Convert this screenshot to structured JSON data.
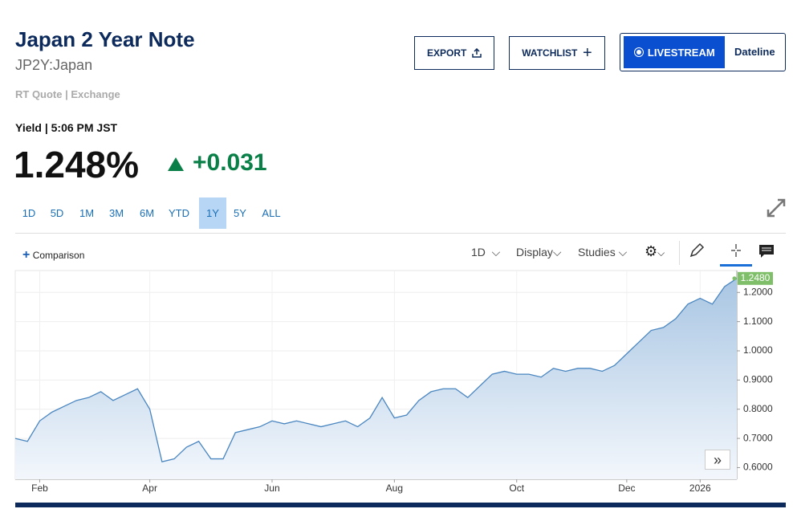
{
  "header": {
    "title": "Japan 2 Year Note",
    "symbol": "JP2Y:Japan",
    "quote_source": "RT Quote | Exchange"
  },
  "buttons": {
    "export": "EXPORT",
    "watchlist": "WATCHLIST",
    "livestream": "LIVESTREAM",
    "dateline": "Dateline"
  },
  "quote": {
    "label": "Yield | 5:06 PM JST",
    "price": "1.248%",
    "change": "+0.031"
  },
  "ranges": [
    "1D",
    "5D",
    "1M",
    "3M",
    "6M",
    "YTD",
    "1Y",
    "5Y",
    "ALL"
  ],
  "active_range_index": 6,
  "toolbar": {
    "comparison": "Comparison",
    "interval": "1D",
    "display": "Display",
    "studies": "Studies"
  },
  "chart_data": {
    "type": "line",
    "categories": [
      null,
      null,
      "Feb",
      null,
      null,
      null,
      null,
      null,
      null,
      null,
      null,
      "Apr",
      null,
      null,
      null,
      null,
      null,
      null,
      null,
      null,
      null,
      "Jun",
      null,
      null,
      null,
      null,
      null,
      null,
      null,
      null,
      null,
      "Aug",
      null,
      null,
      null,
      null,
      null,
      null,
      null,
      null,
      null,
      "Oct",
      null,
      null,
      null,
      null,
      null,
      null,
      null,
      null,
      "Dec",
      null,
      null,
      null,
      null,
      null,
      "2026",
      null,
      null,
      null
    ],
    "series": [
      {
        "name": "JP2Y",
        "color": "#4a86c0",
        "values": [
          0.7,
          0.69,
          0.76,
          0.79,
          0.81,
          0.83,
          0.84,
          0.86,
          0.83,
          0.85,
          0.87,
          0.8,
          0.62,
          0.63,
          0.67,
          0.69,
          0.63,
          0.63,
          0.72,
          0.73,
          0.74,
          0.76,
          0.75,
          0.76,
          0.75,
          0.74,
          0.75,
          0.76,
          0.74,
          0.77,
          0.84,
          0.77,
          0.78,
          0.83,
          0.86,
          0.87,
          0.87,
          0.84,
          0.88,
          0.92,
          0.93,
          0.92,
          0.92,
          0.91,
          0.94,
          0.93,
          0.94,
          0.94,
          0.93,
          0.95,
          0.99,
          1.03,
          1.07,
          1.08,
          1.11,
          1.16,
          1.18,
          1.16,
          1.22,
          1.248
        ]
      }
    ],
    "price_tag": {
      "value": 1.248,
      "label": "1.2480"
    },
    "ylim": [
      0.56,
      1.275
    ],
    "yticks": [
      {
        "value": 0.6,
        "label": "0.6000"
      },
      {
        "value": 0.7,
        "label": "0.7000"
      },
      {
        "value": 0.8,
        "label": "0.8000"
      },
      {
        "value": 0.9,
        "label": "0.9000"
      },
      {
        "value": 1.0,
        "label": "1.0000"
      },
      {
        "value": 1.1,
        "label": "1.1000"
      },
      {
        "value": 1.2,
        "label": "1.2000"
      }
    ],
    "grid": true
  }
}
